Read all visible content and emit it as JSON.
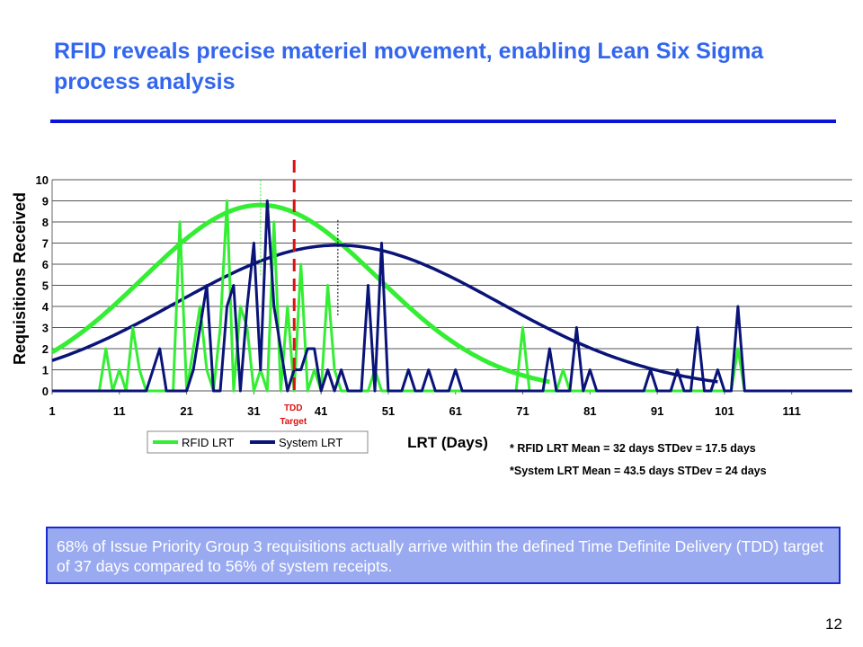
{
  "slide": {
    "title": "RFID reveals precise materiel movement, enabling Lean Six Sigma process analysis",
    "page_number": "12",
    "callout": "68% of Issue Priority Group 3 requisitions actually arrive within the defined Time Definite Delivery (TDD) target of 37 days compared to 56% of system receipts.",
    "stats": [
      "* RFID LRT Mean = 32 days STDev = 17.5 days",
      "*System LRT Mean = 43.5 days  STDev = 24 days"
    ]
  },
  "colors": {
    "title": "#3366ee",
    "rfid": "#33ee33",
    "system": "#0a1478",
    "tdd": "#dd1111",
    "callout_bg": "#9aaaf0",
    "rule": "#0a14d8"
  },
  "chart_data": {
    "type": "line",
    "title": "",
    "xlabel": "LRT (Days)",
    "ylabel": "Requisitions Received",
    "xlim": [
      1,
      120
    ],
    "ylim": [
      0,
      10
    ],
    "xticks": [
      1,
      11,
      21,
      31,
      41,
      51,
      61,
      71,
      81,
      91,
      101,
      111
    ],
    "yticks": [
      0,
      1,
      2,
      3,
      4,
      5,
      6,
      7,
      8,
      9,
      10
    ],
    "grid": true,
    "legend": "bottom-left",
    "annotation": {
      "label_line1": "TDD",
      "label_line2": "Target",
      "x": 37
    },
    "series": [
      {
        "name": "RFID LRT",
        "x": [
          1,
          8,
          9,
          10,
          11,
          12,
          13,
          14,
          15,
          16,
          17,
          18,
          19,
          20,
          21,
          22,
          23,
          24,
          25,
          26,
          27,
          28,
          29,
          30,
          31,
          32,
          33,
          34,
          35,
          36,
          37,
          38,
          39,
          40,
          41,
          42,
          43,
          44,
          45,
          46,
          47,
          48,
          49,
          50,
          51,
          52,
          53,
          54,
          55,
          56,
          57,
          58,
          59,
          60,
          61,
          62,
          63,
          64,
          65,
          66,
          67,
          68,
          69,
          70,
          71,
          72,
          73,
          74,
          75,
          76,
          77,
          78,
          79,
          80,
          81,
          82,
          83,
          84,
          85,
          86,
          87,
          88,
          89,
          90,
          91,
          92,
          93,
          94,
          95,
          96,
          97,
          98,
          99,
          100,
          101,
          102,
          103,
          104,
          105,
          106,
          107,
          108,
          109,
          110,
          111,
          112,
          113,
          114,
          115,
          116,
          117,
          118,
          119,
          120
        ],
        "values": [
          0,
          0,
          2,
          0,
          1,
          0,
          3,
          1,
          0,
          0,
          0,
          0,
          0,
          8,
          0,
          2,
          4,
          1,
          0,
          3,
          9,
          0,
          4,
          3,
          0,
          1,
          0,
          8,
          0,
          4,
          0,
          6,
          0,
          1,
          0,
          5,
          1,
          0,
          0,
          0,
          0,
          0,
          1,
          0,
          0,
          0,
          0,
          0,
          0,
          0,
          0,
          0,
          0,
          0,
          0,
          0,
          0,
          0,
          0,
          0,
          0,
          0,
          0,
          0,
          3,
          0,
          0,
          0,
          0,
          0,
          1,
          0,
          0,
          0,
          0,
          0,
          0,
          0,
          0,
          0,
          0,
          0,
          0,
          0,
          0,
          0,
          0,
          0,
          0,
          0,
          0,
          0,
          0,
          0,
          0,
          0,
          2,
          0,
          0,
          0,
          0,
          0,
          0,
          0,
          0,
          0,
          0,
          0,
          0,
          0,
          0,
          0,
          0,
          0
        ]
      },
      {
        "name": "System LRT",
        "x": [
          1,
          15,
          16,
          17,
          18,
          19,
          20,
          21,
          22,
          23,
          24,
          25,
          26,
          27,
          28,
          29,
          30,
          31,
          32,
          33,
          34,
          35,
          36,
          37,
          38,
          39,
          40,
          41,
          42,
          43,
          44,
          45,
          46,
          47,
          48,
          49,
          50,
          51,
          52,
          53,
          54,
          55,
          56,
          57,
          58,
          59,
          60,
          61,
          62,
          63,
          64,
          65,
          66,
          67,
          68,
          69,
          70,
          71,
          72,
          73,
          74,
          75,
          76,
          77,
          78,
          79,
          80,
          81,
          82,
          83,
          84,
          85,
          86,
          87,
          88,
          89,
          90,
          91,
          92,
          93,
          94,
          95,
          96,
          97,
          98,
          99,
          100,
          101,
          102,
          103,
          104,
          105,
          106,
          107,
          108,
          109,
          110,
          111,
          112,
          113,
          114,
          115,
          116,
          117,
          118,
          119,
          120
        ],
        "values": [
          0,
          0,
          1,
          2,
          0,
          0,
          0,
          0,
          1,
          3,
          5,
          0,
          0,
          4,
          5,
          0,
          4,
          7,
          1,
          9,
          4,
          2,
          0,
          1,
          1,
          2,
          2,
          0,
          1,
          0,
          1,
          0,
          0,
          0,
          5,
          0,
          7,
          0,
          0,
          0,
          1,
          0,
          0,
          1,
          0,
          0,
          0,
          1,
          0,
          0,
          0,
          0,
          0,
          0,
          0,
          0,
          0,
          0,
          0,
          0,
          0,
          2,
          0,
          0,
          0,
          3,
          0,
          1,
          0,
          0,
          0,
          0,
          0,
          0,
          0,
          0,
          1,
          0,
          0,
          0,
          1,
          0,
          0,
          3,
          0,
          0,
          1,
          0,
          0,
          4,
          0,
          0,
          0,
          0,
          0,
          0,
          0,
          0,
          0,
          0,
          0,
          0,
          0,
          0,
          0,
          0,
          0
        ]
      }
    ],
    "fit_curves": [
      {
        "series": "RFID LRT",
        "mean": 32,
        "stdev": 17.5,
        "peak": 8.8,
        "x_from": 1,
        "x_to": 75
      },
      {
        "series": "System LRT",
        "mean": 43.5,
        "stdev": 24,
        "peak": 6.9,
        "x_from": 1,
        "x_to": 100
      }
    ]
  }
}
